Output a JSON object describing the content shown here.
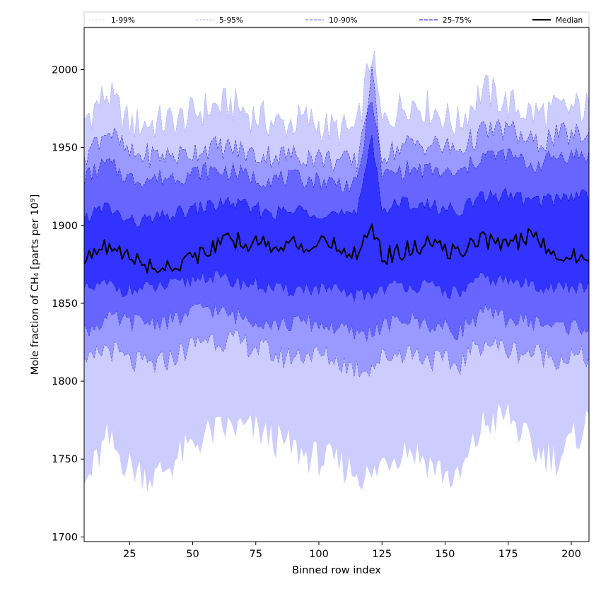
{
  "chart_data": {
    "type": "area",
    "xlabel": "Binned row index",
    "ylabel": "Mole fraction of CH₄ [parts per 10⁹]",
    "xlim": [
      7,
      207
    ],
    "ylim": [
      1697,
      2027
    ],
    "xticks": [
      25,
      50,
      75,
      100,
      125,
      150,
      175,
      200
    ],
    "yticks": [
      1700,
      1750,
      1800,
      1850,
      1900,
      1950,
      2000
    ],
    "grid": false,
    "legend_placement": "top, above plot",
    "x": [
      7,
      16,
      25,
      35,
      45,
      55,
      65,
      75,
      85,
      95,
      105,
      115,
      121,
      125,
      135,
      145,
      155,
      165,
      175,
      185,
      195,
      207
    ],
    "bands": [
      {
        "name": "1-99%",
        "color": "#ccccff",
        "lower": [
          1732,
          1762,
          1745,
          1738,
          1752,
          1765,
          1770,
          1768,
          1760,
          1752,
          1748,
          1742,
          1737,
          1748,
          1758,
          1746,
          1735,
          1772,
          1778,
          1755,
          1750,
          1775
        ],
        "upper": [
          1968,
          1985,
          1965,
          1966,
          1968,
          1975,
          1978,
          1970,
          1965,
          1968,
          1962,
          1960,
          2012,
          1965,
          1980,
          1975,
          1965,
          1988,
          1978,
          1972,
          1974,
          1976
        ]
      },
      {
        "name": "5-95%",
        "color": "#9999ff",
        "lower": [
          1808,
          1822,
          1812,
          1810,
          1818,
          1828,
          1826,
          1822,
          1815,
          1818,
          1815,
          1808,
          1810,
          1815,
          1820,
          1814,
          1810,
          1826,
          1820,
          1818,
          1815,
          1815
        ],
        "upper": [
          1945,
          1962,
          1945,
          1945,
          1945,
          1950,
          1950,
          1945,
          1945,
          1945,
          1942,
          1940,
          1995,
          1945,
          1952,
          1952,
          1948,
          1960,
          1962,
          1952,
          1958,
          1958
        ]
      },
      {
        "name": "10-90%",
        "color": "#6666ff",
        "lower": [
          1832,
          1840,
          1838,
          1838,
          1840,
          1848,
          1842,
          1840,
          1836,
          1838,
          1835,
          1830,
          1832,
          1835,
          1840,
          1836,
          1832,
          1844,
          1840,
          1838,
          1835,
          1835
        ],
        "upper": [
          1930,
          1940,
          1930,
          1930,
          1932,
          1935,
          1935,
          1930,
          1930,
          1930,
          1928,
          1925,
          1985,
          1932,
          1936,
          1935,
          1932,
          1945,
          1945,
          1938,
          1945,
          1945
        ]
      },
      {
        "name": "25-75%",
        "color": "#3333ff",
        "lower": [
          1858,
          1862,
          1858,
          1860,
          1862,
          1868,
          1864,
          1862,
          1858,
          1860,
          1858,
          1855,
          1856,
          1860,
          1862,
          1860,
          1856,
          1866,
          1864,
          1862,
          1860,
          1860
        ],
        "upper": [
          1905,
          1912,
          1902,
          1904,
          1908,
          1912,
          1915,
          1910,
          1908,
          1910,
          1908,
          1905,
          1960,
          1910,
          1915,
          1912,
          1910,
          1918,
          1920,
          1915,
          1918,
          1920
        ]
      }
    ],
    "series": [
      {
        "name": "Median",
        "color": "#000000",
        "values": [
          1876,
          1887,
          1880,
          1872,
          1876,
          1884,
          1890,
          1889,
          1887,
          1888,
          1887,
          1882,
          1902,
          1880,
          1884,
          1888,
          1882,
          1891,
          1888,
          1893,
          1882,
          1878
        ]
      }
    ],
    "legend": [
      "1-99%",
      "5-95%",
      "10-90%",
      "25-75%",
      "Median"
    ]
  }
}
